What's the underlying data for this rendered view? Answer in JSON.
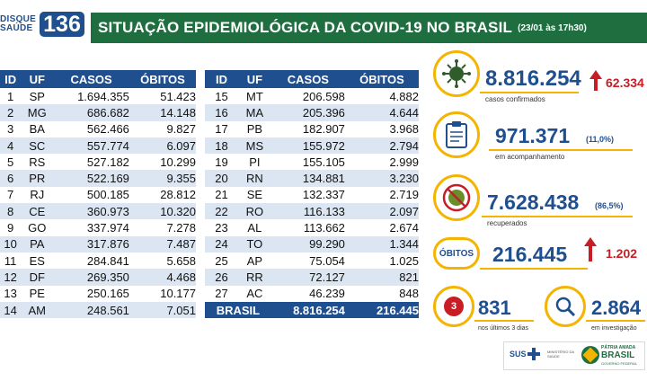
{
  "header": {
    "logo_line1": "DISQUE",
    "logo_line2": "SAÚDE",
    "logo_number": "136",
    "title": "SITUAÇÃO EPIDEMIOLÓGICA DA COVID-19 NO BRASIL",
    "subtitle": "(23/01 às 17h30)"
  },
  "table": {
    "headers": [
      "ID",
      "UF",
      "CASOS",
      "ÓBITOS"
    ],
    "left": [
      [
        "1",
        "SP",
        "1.694.355",
        "51.423"
      ],
      [
        "2",
        "MG",
        "686.682",
        "14.148"
      ],
      [
        "3",
        "BA",
        "562.466",
        "9.827"
      ],
      [
        "4",
        "SC",
        "557.774",
        "6.097"
      ],
      [
        "5",
        "RS",
        "527.182",
        "10.299"
      ],
      [
        "6",
        "PR",
        "522.169",
        "9.355"
      ],
      [
        "7",
        "RJ",
        "500.185",
        "28.812"
      ],
      [
        "8",
        "CE",
        "360.973",
        "10.320"
      ],
      [
        "9",
        "GO",
        "337.974",
        "7.278"
      ],
      [
        "10",
        "PA",
        "317.876",
        "7.487"
      ],
      [
        "11",
        "ES",
        "284.841",
        "5.658"
      ],
      [
        "12",
        "DF",
        "269.350",
        "4.468"
      ],
      [
        "13",
        "PE",
        "250.165",
        "10.177"
      ],
      [
        "14",
        "AM",
        "248.561",
        "7.051"
      ]
    ],
    "right": [
      [
        "15",
        "MT",
        "206.598",
        "4.882"
      ],
      [
        "16",
        "MA",
        "205.396",
        "4.644"
      ],
      [
        "17",
        "PB",
        "182.907",
        "3.968"
      ],
      [
        "18",
        "MS",
        "155.972",
        "2.794"
      ],
      [
        "19",
        "PI",
        "155.105",
        "2.999"
      ],
      [
        "20",
        "RN",
        "134.881",
        "3.230"
      ],
      [
        "21",
        "SE",
        "132.337",
        "2.719"
      ],
      [
        "22",
        "RO",
        "116.133",
        "2.097"
      ],
      [
        "23",
        "AL",
        "113.662",
        "2.674"
      ],
      [
        "24",
        "TO",
        "99.290",
        "1.344"
      ],
      [
        "25",
        "AP",
        "75.054",
        "1.025"
      ],
      [
        "26",
        "RR",
        "72.127",
        "821"
      ],
      [
        "27",
        "AC",
        "46.239",
        "848"
      ]
    ],
    "total": {
      "label": "BRASIL",
      "cases": "8.816.254",
      "deaths": "216.445"
    }
  },
  "stats": {
    "confirmed": {
      "value": "8.816.254",
      "label": "casos confirmados",
      "increase": "62.334"
    },
    "monitoring": {
      "value": "971.371",
      "pct": "(11,0%)",
      "label": "em acompanhamento"
    },
    "recovered": {
      "value": "7.628.438",
      "pct": "(86,5%)",
      "label": "recuperados"
    },
    "deaths": {
      "badge": "ÓBITOS",
      "value": "216.445",
      "increase": "1.202"
    },
    "last3days": {
      "value": "831",
      "label": "nos últimos 3 dias",
      "icon_text": "3"
    },
    "investigation": {
      "value": "2.864",
      "label": "em investigação"
    }
  },
  "footer": {
    "sus": "SUS",
    "ministry": "MINISTÉRIO DA SAÚDE",
    "brand_line1": "PÁTRIA AMADA",
    "brand_line2": "BRASIL",
    "brand_line3": "GOVERNO FEDERAL"
  },
  "colors": {
    "primary": "#1f4f8f",
    "header_green": "#1e6e3f",
    "accent": "#f4b400",
    "alert": "#c81d25",
    "row_alt": "#dbe6f2"
  },
  "icons": [
    "virus-icon",
    "clipboard-icon",
    "recovered-virus-icon",
    "calendar-icon",
    "magnifier-icon",
    "up-arrow-icon"
  ]
}
